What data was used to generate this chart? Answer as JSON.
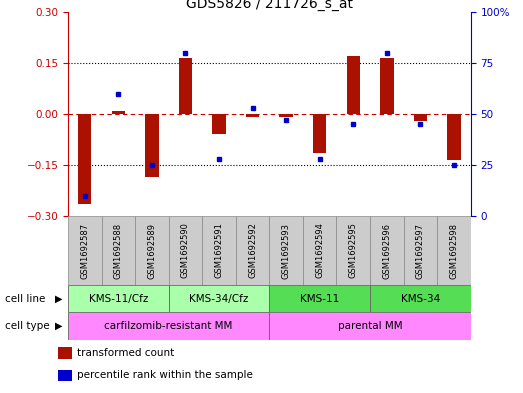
{
  "title": "GDS5826 / 211726_s_at",
  "samples": [
    "GSM1692587",
    "GSM1692588",
    "GSM1692589",
    "GSM1692590",
    "GSM1692591",
    "GSM1692592",
    "GSM1692593",
    "GSM1692594",
    "GSM1692595",
    "GSM1692596",
    "GSM1692597",
    "GSM1692598"
  ],
  "transformed_count": [
    -0.265,
    0.01,
    -0.185,
    0.165,
    -0.06,
    -0.01,
    -0.01,
    -0.115,
    0.17,
    0.165,
    -0.02,
    -0.135
  ],
  "percentile_rank": [
    10,
    60,
    25,
    80,
    28,
    53,
    47,
    28,
    45,
    80,
    45,
    25
  ],
  "ylim_left": [
    -0.3,
    0.3
  ],
  "ylim_right": [
    0,
    100
  ],
  "yticks_left": [
    -0.3,
    -0.15,
    0,
    0.15,
    0.3
  ],
  "yticks_right": [
    0,
    25,
    50,
    75,
    100
  ],
  "hlines": [
    -0.15,
    0,
    0.15
  ],
  "cell_line_groups": [
    {
      "label": "KMS-11/Cfz",
      "start": 0,
      "end": 3,
      "color": "#aaffaa"
    },
    {
      "label": "KMS-34/Cfz",
      "start": 3,
      "end": 6,
      "color": "#aaffaa"
    },
    {
      "label": "KMS-11",
      "start": 6,
      "end": 9,
      "color": "#55dd55"
    },
    {
      "label": "KMS-34",
      "start": 9,
      "end": 12,
      "color": "#55dd55"
    }
  ],
  "cell_type_groups": [
    {
      "label": "carfilzomib-resistant MM",
      "start": 0,
      "end": 6,
      "color": "#ff88ff"
    },
    {
      "label": "parental MM",
      "start": 6,
      "end": 12,
      "color": "#ff88ff"
    }
  ],
  "sample_box_color": "#cccccc",
  "bar_color": "#aa1100",
  "dot_color": "#0000cc",
  "zero_line_color": "#cc0000",
  "hline_color": "#000000",
  "left_axis_color": "#cc0000",
  "right_axis_color": "#0000cc",
  "legend_items": [
    {
      "label": "transformed count",
      "color": "#aa1100"
    },
    {
      "label": "percentile rank within the sample",
      "color": "#0000cc"
    }
  ],
  "figsize": [
    5.23,
    3.93
  ],
  "dpi": 100
}
